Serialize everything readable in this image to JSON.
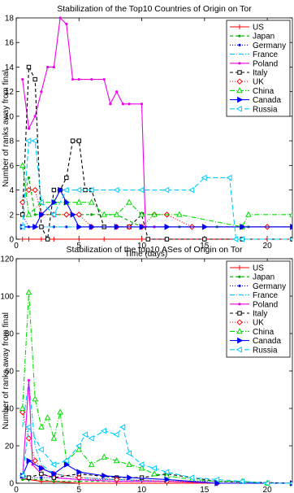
{
  "chart_data": [
    {
      "type": "line",
      "title": "Stabilization of the Top10 Countries of Origin on Tor",
      "xlabel": "Time (days)",
      "ylabel": "Number of ranks away from final",
      "xlim": [
        0,
        22
      ],
      "ylim": [
        0,
        18
      ],
      "xticks": [
        0,
        5,
        10,
        15,
        20
      ],
      "yticks": [
        0,
        2,
        4,
        6,
        8,
        10,
        12,
        14,
        16,
        18
      ],
      "grid": false,
      "legend": "top-right",
      "series": [
        {
          "name": "US",
          "color": "#ff0000",
          "dash": "",
          "marker": "plus",
          "x": [
            0.5,
            1,
            2,
            3,
            5,
            7,
            10,
            12,
            15,
            18,
            20,
            22
          ],
          "y": [
            0,
            0,
            0,
            0,
            0,
            0,
            0,
            0,
            0,
            0,
            0,
            0
          ]
        },
        {
          "name": "Japan",
          "color": "#00aa00",
          "dash": "4,3",
          "marker": "dot",
          "x": [
            0.5,
            1,
            1.5,
            2,
            3,
            4,
            5,
            6,
            8,
            10,
            11,
            13,
            16,
            18,
            18.5,
            22
          ],
          "y": [
            3,
            5,
            2,
            2,
            2,
            2,
            2,
            2,
            2,
            1,
            1,
            1,
            1,
            1,
            1,
            1
          ]
        },
        {
          "name": "Germany",
          "color": "#0000ff",
          "dash": "1,2",
          "marker": "dot",
          "x": [
            0.5,
            1,
            2,
            3,
            4,
            5,
            6,
            8,
            10,
            12,
            15,
            18,
            22
          ],
          "y": [
            2,
            1,
            1,
            1,
            1,
            1,
            1,
            1,
            1,
            1,
            1,
            1,
            1
          ]
        },
        {
          "name": "France",
          "color": "#00ccff",
          "dash": "6,2,1,2",
          "marker": "none",
          "x": [
            0.5,
            1,
            2,
            3,
            4,
            5,
            6,
            8,
            10,
            12,
            15,
            18,
            22
          ],
          "y": [
            1,
            1,
            1,
            1,
            1,
            1,
            1,
            1,
            1,
            1,
            1,
            1,
            1
          ]
        },
        {
          "name": "Poland",
          "color": "#ee00ee",
          "dash": "",
          "marker": "dot",
          "x": [
            0.5,
            1,
            1.5,
            2,
            2.5,
            3,
            3.5,
            4,
            4.5,
            5,
            6,
            7,
            7.5,
            8,
            8.5,
            9,
            10,
            10.3,
            11,
            15,
            18,
            22
          ],
          "y": [
            13,
            9,
            10,
            12,
            14,
            14,
            18,
            17.5,
            13,
            13,
            13,
            13,
            11,
            12,
            11,
            11,
            11,
            1,
            1,
            1,
            1,
            1
          ]
        },
        {
          "name": "Italy",
          "color": "#000000",
          "dash": "4,3",
          "marker": "square",
          "x": [
            0.5,
            1,
            1.5,
            2,
            2.5,
            3,
            3.5,
            4,
            4.5,
            5,
            5.5,
            6,
            7,
            9,
            10,
            10.5,
            12,
            15,
            18,
            22
          ],
          "y": [
            2,
            14,
            13,
            1,
            0,
            4,
            4,
            5,
            8,
            8,
            4,
            4,
            1,
            1,
            2,
            0,
            0,
            0,
            0,
            0
          ]
        },
        {
          "name": "UK",
          "color": "#ff0000",
          "dash": "1,2",
          "marker": "diamond",
          "x": [
            0.5,
            1,
            1.5,
            2,
            3,
            4,
            5,
            6,
            8,
            9,
            10,
            11,
            12,
            14,
            18,
            20,
            22
          ],
          "y": [
            3,
            4,
            4,
            2,
            2,
            2,
            2,
            1,
            1,
            1,
            1,
            2,
            2,
            1,
            1,
            1,
            1
          ]
        },
        {
          "name": "China",
          "color": "#00dd00",
          "dash": "6,2,1,2",
          "marker": "triangle-up",
          "x": [
            0.5,
            1,
            2,
            3,
            4,
            5,
            6,
            7,
            8,
            9,
            10,
            11,
            13,
            18,
            18.5,
            22
          ],
          "y": [
            6,
            2,
            3,
            3,
            3,
            3,
            3,
            2,
            2,
            3,
            2,
            2,
            2,
            1,
            2,
            2
          ]
        },
        {
          "name": "Canada",
          "color": "#0000ff",
          "dash": "",
          "marker": "triangle-right",
          "x": [
            0.5,
            1.5,
            2,
            3,
            3.5,
            4,
            4.5,
            5,
            6,
            8,
            10,
            12,
            15,
            18,
            22
          ],
          "y": [
            1,
            1,
            2,
            3,
            4,
            3,
            2,
            1,
            1,
            1,
            1,
            1,
            1,
            1,
            1
          ]
        },
        {
          "name": "Russia",
          "color": "#00ccff",
          "dash": "6,3",
          "marker": "triangle-left",
          "x": [
            0.5,
            1,
            1.5,
            2,
            3,
            4,
            5,
            6,
            8,
            10,
            12,
            14,
            15,
            17,
            17.5,
            18,
            22
          ],
          "y": [
            1,
            8,
            8,
            3,
            2,
            4,
            4,
            4,
            4,
            4,
            4,
            4,
            5,
            5,
            0,
            0,
            0
          ]
        }
      ]
    },
    {
      "type": "line",
      "title": "Stabilization of the top10 ASes of Origin on Tor",
      "xlabel": "Time (days)",
      "ylabel": "Number of ranks away from final",
      "xlim": [
        0,
        22
      ],
      "ylim": [
        0,
        120
      ],
      "xticks": [
        0,
        5,
        10,
        15,
        20
      ],
      "yticks": [
        0,
        20,
        40,
        60,
        80,
        100,
        120
      ],
      "grid": false,
      "legend": "top-right",
      "series": [
        {
          "name": "US",
          "color": "#ff0000",
          "dash": "",
          "marker": "plus",
          "x": [
            0.5,
            1,
            2,
            3,
            5,
            8,
            12,
            16,
            22
          ],
          "y": [
            3,
            2,
            1,
            1,
            0,
            0,
            0,
            0,
            0
          ]
        },
        {
          "name": "Japan",
          "color": "#00aa00",
          "dash": "4,3",
          "marker": "dot",
          "x": [
            0.5,
            1,
            2,
            3,
            5,
            8,
            12,
            16,
            22
          ],
          "y": [
            2,
            2,
            2,
            1,
            1,
            1,
            1,
            0,
            0
          ]
        },
        {
          "name": "Germany",
          "color": "#0000ff",
          "dash": "1,2",
          "marker": "dot",
          "x": [
            0.5,
            1,
            2,
            3,
            5,
            8,
            12,
            16,
            22
          ],
          "y": [
            4,
            3,
            3,
            3,
            2,
            2,
            1,
            1,
            0
          ]
        },
        {
          "name": "France",
          "color": "#00ccff",
          "dash": "6,2,1,2",
          "marker": "none",
          "x": [
            0.5,
            1,
            1.5,
            2,
            3,
            5,
            8,
            12,
            16,
            22
          ],
          "y": [
            30,
            55,
            20,
            10,
            5,
            3,
            2,
            1,
            0,
            0
          ]
        },
        {
          "name": "Poland",
          "color": "#ee00ee",
          "dash": "",
          "marker": "dot",
          "x": [
            0.5,
            1,
            1.3,
            2,
            3,
            5,
            8,
            12,
            16,
            22
          ],
          "y": [
            3,
            55,
            10,
            5,
            3,
            2,
            1,
            1,
            0,
            0
          ]
        },
        {
          "name": "Italy",
          "color": "#000000",
          "dash": "4,3",
          "marker": "square",
          "x": [
            0.5,
            1,
            2,
            3,
            5,
            8,
            10,
            12,
            16,
            22
          ],
          "y": [
            4,
            3,
            5,
            3,
            5,
            3,
            3,
            5,
            1,
            0
          ]
        },
        {
          "name": "UK",
          "color": "#ff0000",
          "dash": "1,2",
          "marker": "diamond",
          "x": [
            0.5,
            1,
            1.5,
            2,
            3,
            5,
            8,
            12,
            16,
            22
          ],
          "y": [
            38,
            24,
            12,
            8,
            5,
            3,
            2,
            1,
            0,
            0
          ]
        },
        {
          "name": "China",
          "color": "#00dd00",
          "dash": "6,2,1,2",
          "marker": "triangle-up",
          "x": [
            0.5,
            1,
            1.5,
            2,
            2.5,
            3,
            3.5,
            4,
            5,
            6,
            7,
            8,
            9,
            10,
            11,
            12,
            14,
            16,
            18,
            20,
            22
          ],
          "y": [
            40,
            102,
            45,
            30,
            35,
            24,
            38,
            12,
            18,
            10,
            14,
            12,
            10,
            8,
            5,
            4,
            2,
            1,
            1,
            0,
            0
          ]
        },
        {
          "name": "Canada",
          "color": "#0000ff",
          "dash": "",
          "marker": "triangle-right",
          "x": [
            0.5,
            1,
            2,
            3,
            4,
            5,
            7,
            9,
            12,
            16,
            22
          ],
          "y": [
            4,
            12,
            8,
            5,
            10,
            6,
            4,
            3,
            2,
            0,
            0
          ]
        },
        {
          "name": "Russia",
          "color": "#00ccff",
          "dash": "6,3",
          "marker": "triangle-left",
          "x": [
            0.5,
            1,
            2,
            3,
            4,
            5,
            5.5,
            6,
            7,
            8,
            8.5,
            9,
            10,
            11,
            12,
            14,
            16,
            18,
            20,
            22
          ],
          "y": [
            4,
            30,
            18,
            10,
            12,
            20,
            26,
            24,
            28,
            26,
            30,
            16,
            10,
            8,
            6,
            3,
            2,
            1,
            0,
            0
          ]
        }
      ]
    }
  ]
}
